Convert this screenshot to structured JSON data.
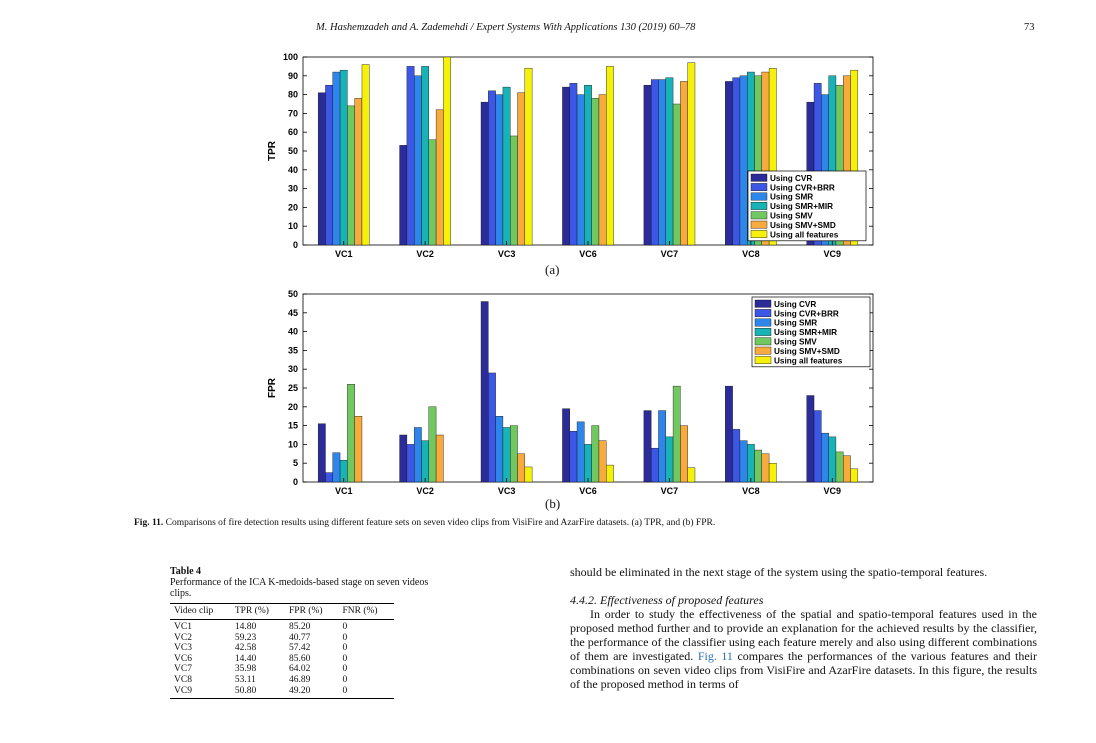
{
  "header": {
    "running_title": "M. Hashemzadeh and A. Zademehdi / Expert Systems With Applications 130 (2019) 60–78",
    "page_number": "73"
  },
  "figure": {
    "caption_label": "Fig. 11.",
    "caption_text": "Comparisons of fire detection results using different feature sets on seven video clips from VisiFire and AzarFire datasets. (a) TPR, and (b) FPR.",
    "colors": [
      "#2b2b99",
      "#3c56e6",
      "#2f86ea",
      "#17b3b7",
      "#72c860",
      "#f7aa3e",
      "#f5f10a"
    ]
  },
  "chart_data": [
    {
      "type": "bar",
      "sublabel": "(a)",
      "ylabel": "TPR",
      "ylim": [
        0,
        100
      ],
      "yticks": [
        0,
        10,
        20,
        30,
        40,
        50,
        60,
        70,
        80,
        90,
        100
      ],
      "categories": [
        "VC1",
        "VC2",
        "VC3",
        "VC6",
        "VC7",
        "VC8",
        "VC9"
      ],
      "legend_position": "bottom-right",
      "series": [
        {
          "name": "Using CVR",
          "values": [
            81,
            53,
            76,
            84,
            85,
            87,
            76
          ]
        },
        {
          "name": "Using CVR+BRR",
          "values": [
            85,
            95,
            82,
            86,
            88,
            89,
            86
          ]
        },
        {
          "name": "Using SMR",
          "values": [
            92,
            90,
            80,
            80,
            88,
            90,
            80
          ]
        },
        {
          "name": "Using SMR+MIR",
          "values": [
            93,
            95,
            84,
            85,
            89,
            92,
            90
          ]
        },
        {
          "name": "Using SMV",
          "values": [
            74,
            56,
            58,
            78,
            75,
            90,
            85
          ]
        },
        {
          "name": "Using SMV+SMD",
          "values": [
            78,
            72,
            81,
            80,
            87,
            92,
            90
          ]
        },
        {
          "name": "Using all features",
          "values": [
            96,
            100,
            94,
            95,
            97,
            94,
            93
          ]
        }
      ]
    },
    {
      "type": "bar",
      "sublabel": "(b)",
      "ylabel": "FPR",
      "ylim": [
        0,
        50
      ],
      "yticks": [
        0,
        5,
        10,
        15,
        20,
        25,
        30,
        35,
        40,
        45,
        50
      ],
      "categories": [
        "VC1",
        "VC2",
        "VC3",
        "VC6",
        "VC7",
        "VC8",
        "VC9"
      ],
      "legend_position": "top-right",
      "series": [
        {
          "name": "Using CVR",
          "values": [
            15.5,
            12.5,
            48,
            19.5,
            19,
            25.5,
            23
          ]
        },
        {
          "name": "Using CVR+BRR",
          "values": [
            2.5,
            10,
            29,
            13.5,
            9,
            14,
            19
          ]
        },
        {
          "name": "Using SMR",
          "values": [
            7.8,
            14.5,
            17.5,
            16,
            19,
            11,
            13
          ]
        },
        {
          "name": "Using SMR+MIR",
          "values": [
            5.8,
            11,
            14.5,
            10,
            12,
            10,
            12
          ]
        },
        {
          "name": "Using SMV",
          "values": [
            26,
            20,
            15,
            15,
            25.5,
            8.5,
            8
          ]
        },
        {
          "name": "Using SMV+SMD",
          "values": [
            17.5,
            12.5,
            7.5,
            11,
            15,
            7.5,
            7
          ]
        },
        {
          "name": "Using all features",
          "values": [
            0,
            0,
            4,
            4.5,
            3.8,
            5,
            3.5
          ]
        }
      ]
    }
  ],
  "table4": {
    "label": "Table 4",
    "title": "Performance of the ICA K-medoids-based stage on seven videos clips.",
    "columns": [
      "Video clip",
      "TPR (%)",
      "FPR (%)",
      "FNR (%)"
    ],
    "rows": [
      [
        "VC1",
        "14.80",
        "85.20",
        "0"
      ],
      [
        "VC2",
        "59.23",
        "40.77",
        "0"
      ],
      [
        "VC3",
        "42.58",
        "57.42",
        "0"
      ],
      [
        "VC6",
        "14.40",
        "85.60",
        "0"
      ],
      [
        "VC7",
        "35.98",
        "64.02",
        "0"
      ],
      [
        "VC8",
        "53.11",
        "46.89",
        "0"
      ],
      [
        "VC9",
        "50.80",
        "49.20",
        "0"
      ]
    ]
  },
  "body": {
    "para1": "should be eliminated in the next stage of the system using the spatio-temporal features.",
    "section_title": "4.4.2. Effectiveness of proposed features",
    "para2_a": "In order to study the effectiveness of the spatial and spatio-temporal features used in the proposed method further and to provide an explanation for the achieved results by the classifier, the performance of the classifier using each feature merely and also using different combinations of them are investigated.",
    "para2_ref": "Fig. 11",
    "para2_b": "compares the performances of the various features and their combinations on seven video clips from VisiFire and AzarFire datasets. In this figure, the results of the proposed method in terms of"
  }
}
